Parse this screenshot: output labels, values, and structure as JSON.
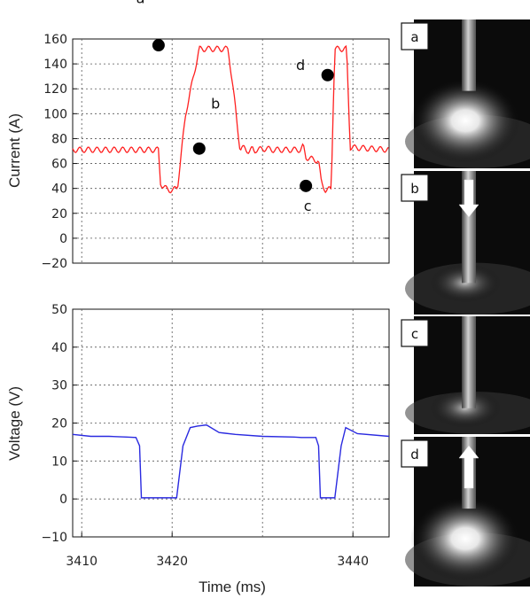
{
  "chart_data": [
    {
      "type": "line",
      "ylabel": "Current (A)",
      "xlim": [
        3409,
        3444
      ],
      "ylim": [
        -20,
        160
      ],
      "yticks": [
        -20,
        0,
        20,
        40,
        60,
        80,
        100,
        120,
        140,
        160
      ],
      "grid": true,
      "series": [
        {
          "color": "#ff2020",
          "x": [
            3409,
            3418.5,
            3418.7,
            3419.0,
            3420.0,
            3420.6,
            3421.5,
            3423.0,
            3426.2,
            3427.0,
            3427.5,
            3427.6,
            3428.0,
            3428.4,
            3428.5,
            3428.9,
            3429.1,
            3429.3,
            3430.5,
            3431.0,
            3434.2,
            3434.5,
            3434.8,
            3436.2,
            3436.5,
            3436.8,
            3437.0,
            3437.6,
            3437.8,
            3438.0,
            3439.3,
            3439.7,
            3444
          ],
          "y": [
            71,
            71,
            45,
            41,
            38,
            41,
            100,
            152,
            152,
            105,
            72,
            71,
            73,
            70,
            69,
            72,
            70,
            71,
            72,
            71,
            71,
            74,
            65,
            62,
            45,
            41,
            38,
            40,
            100,
            152,
            152,
            73,
            71
          ],
          "ripple": true
        }
      ],
      "annotations": [
        {
          "label": "a",
          "point": [
            3418.5,
            155
          ],
          "text": [
            3416.5,
            189
          ]
        },
        {
          "label": "b",
          "point": [
            3423,
            72
          ],
          "text": [
            3424.8,
            104
          ]
        },
        {
          "label": "c",
          "point": [
            3434.8,
            42
          ],
          "text": [
            3435.0,
            22
          ]
        },
        {
          "label": "d",
          "point": [
            3437.2,
            131
          ],
          "text": [
            3434.2,
            135
          ]
        }
      ]
    },
    {
      "type": "line",
      "xlabel": "Time (ms)",
      "ylabel": "Voltage (V)",
      "xlim": [
        3409,
        3444
      ],
      "ylim": [
        -10,
        50
      ],
      "xticks": [
        3410,
        3420,
        3440
      ],
      "yticks": [
        -10,
        0,
        10,
        20,
        30,
        40,
        50
      ],
      "grid": true,
      "series": [
        {
          "color": "#2a2ae0",
          "x": [
            3409,
            3411,
            3413,
            3415,
            3416,
            3416.4,
            3416.6,
            3418.2,
            3420.5,
            3421.2,
            3422.0,
            3422.8,
            3423.8,
            3425.2,
            3427.0,
            3430.0,
            3433.5,
            3434.3,
            3435.9,
            3436.2,
            3436.4,
            3437.5,
            3438.0,
            3438.7,
            3439.2,
            3440.5,
            3444
          ],
          "y": [
            17,
            16.5,
            16.5,
            16.3,
            16.2,
            14,
            0.3,
            0.3,
            0.3,
            14,
            18.8,
            19.2,
            19.5,
            17.5,
            17,
            16.5,
            16.3,
            16.2,
            16.2,
            14,
            0.3,
            0.3,
            0.3,
            14,
            18.8,
            17.2,
            16.5
          ]
        }
      ]
    }
  ],
  "photos": [
    {
      "label": "a",
      "arrow": "none",
      "glow": "bright"
    },
    {
      "label": "b",
      "arrow": "down",
      "glow": "dim"
    },
    {
      "label": "c",
      "arrow": "none",
      "glow": "dim"
    },
    {
      "label": "d",
      "arrow": "up",
      "glow": "bright"
    }
  ]
}
